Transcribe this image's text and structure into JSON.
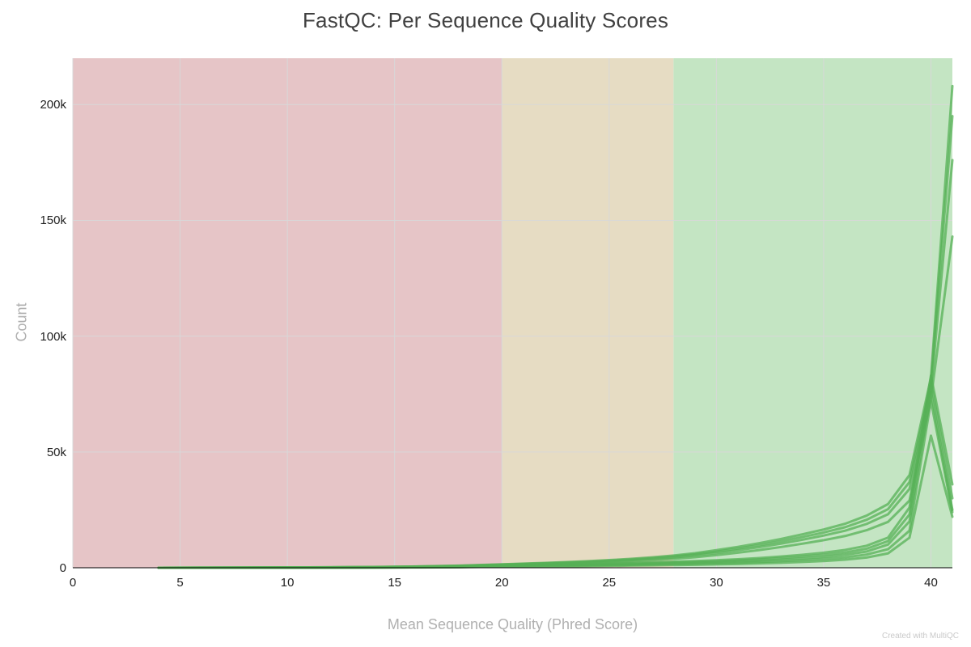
{
  "title": "FastQC: Per Sequence Quality Scores",
  "watermark": "Created with MultiQC",
  "chart_data": {
    "type": "line",
    "title": "FastQC: Per Sequence Quality Scores",
    "xlabel": "Mean Sequence Quality (Phred Score)",
    "ylabel": "Count",
    "xlim": [
      0,
      41
    ],
    "ylim": [
      0,
      220000
    ],
    "xticks": [
      0,
      5,
      10,
      15,
      20,
      25,
      30,
      35,
      40
    ],
    "yticks": [
      {
        "value": 0,
        "label": "0"
      },
      {
        "value": 50000,
        "label": "50k"
      },
      {
        "value": 100000,
        "label": "100k"
      },
      {
        "value": 150000,
        "label": "150k"
      },
      {
        "value": 200000,
        "label": "200k"
      }
    ],
    "grid": true,
    "legend": "none",
    "line_color": "#55b055",
    "line_width": 3,
    "line_opacity": 0.75,
    "grid_color": "#d8d8d8",
    "axis_line_color": "#000000",
    "bands": [
      {
        "from": 0,
        "to": 20,
        "color": "#e6c5c7",
        "meaning": "fail-zone"
      },
      {
        "from": 20,
        "to": 28,
        "color": "#e6dcc3",
        "meaning": "warn-zone"
      },
      {
        "from": 28,
        "to": 41,
        "color": "#c4e5c3",
        "meaning": "pass-zone"
      }
    ],
    "x": [
      4,
      6,
      8,
      10,
      12,
      14,
      16,
      18,
      20,
      21,
      22,
      23,
      24,
      25,
      26,
      27,
      28,
      29,
      30,
      31,
      32,
      33,
      34,
      35,
      36,
      37,
      38,
      39,
      40,
      41
    ],
    "series": [
      {
        "id": "s1",
        "values": [
          0,
          30,
          70,
          130,
          220,
          350,
          550,
          900,
          1500,
          1800,
          2100,
          2450,
          2850,
          3300,
          3850,
          4500,
          5300,
          6300,
          7600,
          9000,
          10600,
          12400,
          14400,
          16500,
          19000,
          22500,
          27500,
          40000,
          82000,
          208000
        ]
      },
      {
        "id": "s2",
        "values": [
          0,
          28,
          64,
          120,
          200,
          320,
          510,
          830,
          1380,
          1660,
          1930,
          2250,
          2620,
          3040,
          3540,
          4140,
          4880,
          5800,
          7000,
          8280,
          9750,
          11400,
          13250,
          15200,
          17500,
          20700,
          25300,
          37000,
          80000,
          195000
        ]
      },
      {
        "id": "s3",
        "values": [
          0,
          25,
          59,
          109,
          185,
          294,
          460,
          760,
          1260,
          1510,
          1760,
          2060,
          2390,
          2770,
          3230,
          3780,
          4450,
          5290,
          6380,
          7560,
          8900,
          10400,
          12100,
          13900,
          16000,
          18900,
          23100,
          34000,
          77000,
          176000
        ]
      },
      {
        "id": "s4",
        "values": [
          0,
          22,
          50,
          94,
          158,
          252,
          400,
          650,
          1080,
          1300,
          1510,
          1760,
          2050,
          2380,
          2770,
          3240,
          3820,
          4540,
          5470,
          6480,
          7630,
          8930,
          10370,
          11900,
          13700,
          16200,
          19800,
          29000,
          73000,
          143000
        ]
      },
      {
        "id": "s5",
        "values": [
          0,
          15,
          35,
          65,
          110,
          175,
          275,
          450,
          1100,
          1220,
          1350,
          1500,
          1670,
          1870,
          2080,
          2330,
          2620,
          2900,
          3250,
          3680,
          4200,
          4850,
          5600,
          6500,
          7700,
          9500,
          13000,
          26000,
          83000,
          36000
        ]
      },
      {
        "id": "s6",
        "values": [
          0,
          13,
          30,
          56,
          95,
          150,
          240,
          390,
          950,
          1050,
          1160,
          1290,
          1440,
          1600,
          1790,
          2000,
          2250,
          2500,
          2800,
          3170,
          3620,
          4180,
          4830,
          5600,
          6600,
          8200,
          11500,
          23000,
          80000,
          30000
        ]
      },
      {
        "id": "s7",
        "values": [
          0,
          11,
          25,
          47,
          80,
          125,
          200,
          330,
          790,
          880,
          970,
          1080,
          1200,
          1330,
          1490,
          1670,
          1870,
          2090,
          2340,
          2650,
          3020,
          3490,
          4030,
          4700,
          5600,
          7000,
          10000,
          20000,
          76000,
          25000
        ]
      },
      {
        "id": "s8",
        "values": [
          0,
          9,
          21,
          39,
          66,
          105,
          165,
          270,
          640,
          710,
          790,
          880,
          980,
          1090,
          1220,
          1360,
          1520,
          1700,
          1910,
          2160,
          2470,
          2850,
          3290,
          3800,
          4500,
          5700,
          8000,
          16000,
          72000,
          24000
        ]
      },
      {
        "id": "s9",
        "values": [
          0,
          7,
          16,
          30,
          50,
          80,
          125,
          205,
          480,
          530,
          590,
          660,
          730,
          820,
          910,
          1020,
          1140,
          1280,
          1440,
          1630,
          1860,
          2150,
          2490,
          2900,
          3500,
          4400,
          6200,
          13000,
          57000,
          22000
        ]
      }
    ]
  }
}
